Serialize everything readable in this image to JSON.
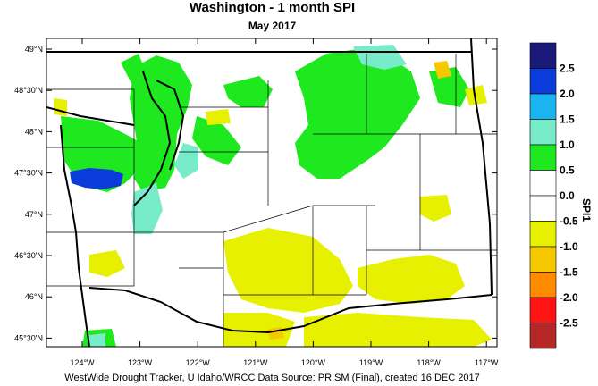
{
  "title": "Washington - 1 month SPI",
  "subtitle": "May 2017",
  "credit": "WestWide Drought Tracker, U Idaho/WRCC Data Source: PRISM (Final), created 16 DEC 2017",
  "lat_labels": [
    "49°N",
    "48°30'N",
    "48°N",
    "47°30'N",
    "47°N",
    "46°30'N",
    "46°N",
    "45°30'N"
  ],
  "lon_labels": [
    "124°W",
    "123°W",
    "122°W",
    "121°W",
    "120°W",
    "119°W",
    "118°W",
    "117°W"
  ],
  "legend": {
    "title": "SPI1",
    "labels": [
      "2.5",
      "2.0",
      "1.5",
      "1.0",
      "0.5",
      "0.0",
      "-0.5",
      "-1.0",
      "-1.5",
      "-2.0",
      "-2.5"
    ],
    "colors": [
      "#1a1a7a",
      "#0a3cdc",
      "#1ab4f0",
      "#78ecc8",
      "#1ee81e",
      "#ffffff",
      "#ffffff",
      "#e6f000",
      "#f5c800",
      "#ff8c00",
      "#ff1414",
      "#b42828"
    ]
  },
  "map_colors": {
    "land": "#ffffff",
    "wet_light": "#1ee81e",
    "wet_moderate": "#78ecc8",
    "wet_strong": "#0a3cdc",
    "wet_very": "#1ab4f0",
    "dry_light": "#e6f000",
    "dry_moderate": "#f5c800"
  }
}
